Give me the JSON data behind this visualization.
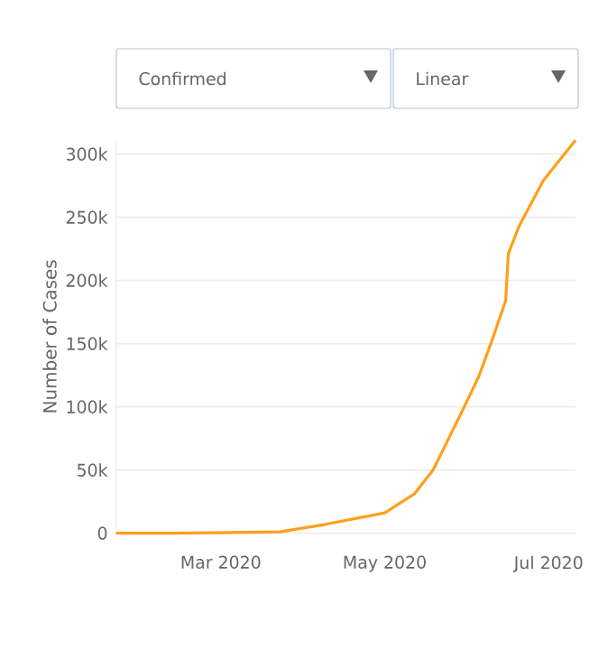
{
  "chart_data": {
    "type": "line",
    "ylabel": "Number of Cases",
    "annotations": [
      "Confirmed",
      "Linear"
    ],
    "x": [
      "2020-01-22",
      "2020-02-13",
      "2020-03-23",
      "2020-04-09",
      "2020-05-01",
      "2020-05-12",
      "2020-05-19",
      "2020-05-29",
      "2020-06-05",
      "2020-06-10",
      "2020-06-15",
      "2020-06-16",
      "2020-06-20",
      "2020-06-29",
      "2020-07-11"
    ],
    "values": [
      0,
      0,
      1000,
      7000,
      16000,
      31000,
      50000,
      93000,
      124000,
      153000,
      184000,
      221000,
      243000,
      279000,
      311000
    ],
    "color": "#ff9f1a",
    "xlim": [
      "2020-01-22",
      "2020-07-11"
    ],
    "xticks": [
      {
        "value": "2020-03-01",
        "label": "Mar 2020"
      },
      {
        "value": "2020-05-01",
        "label": "May 2020"
      },
      {
        "value": "2020-07-01",
        "label": "Jul 2020"
      }
    ],
    "ylim": [
      0,
      311000
    ],
    "yticks": [
      0,
      {
        "value": 50000,
        "label": "50k"
      },
      {
        "value": 100000,
        "label": "100k"
      },
      {
        "value": 150000,
        "label": "150k"
      },
      {
        "value": 200000,
        "label": "200k"
      },
      {
        "value": 250000,
        "label": "250k"
      },
      {
        "value": 300000,
        "label": "300k"
      }
    ],
    "grid": "y",
    "marker": "none",
    "line_style": "solid"
  }
}
